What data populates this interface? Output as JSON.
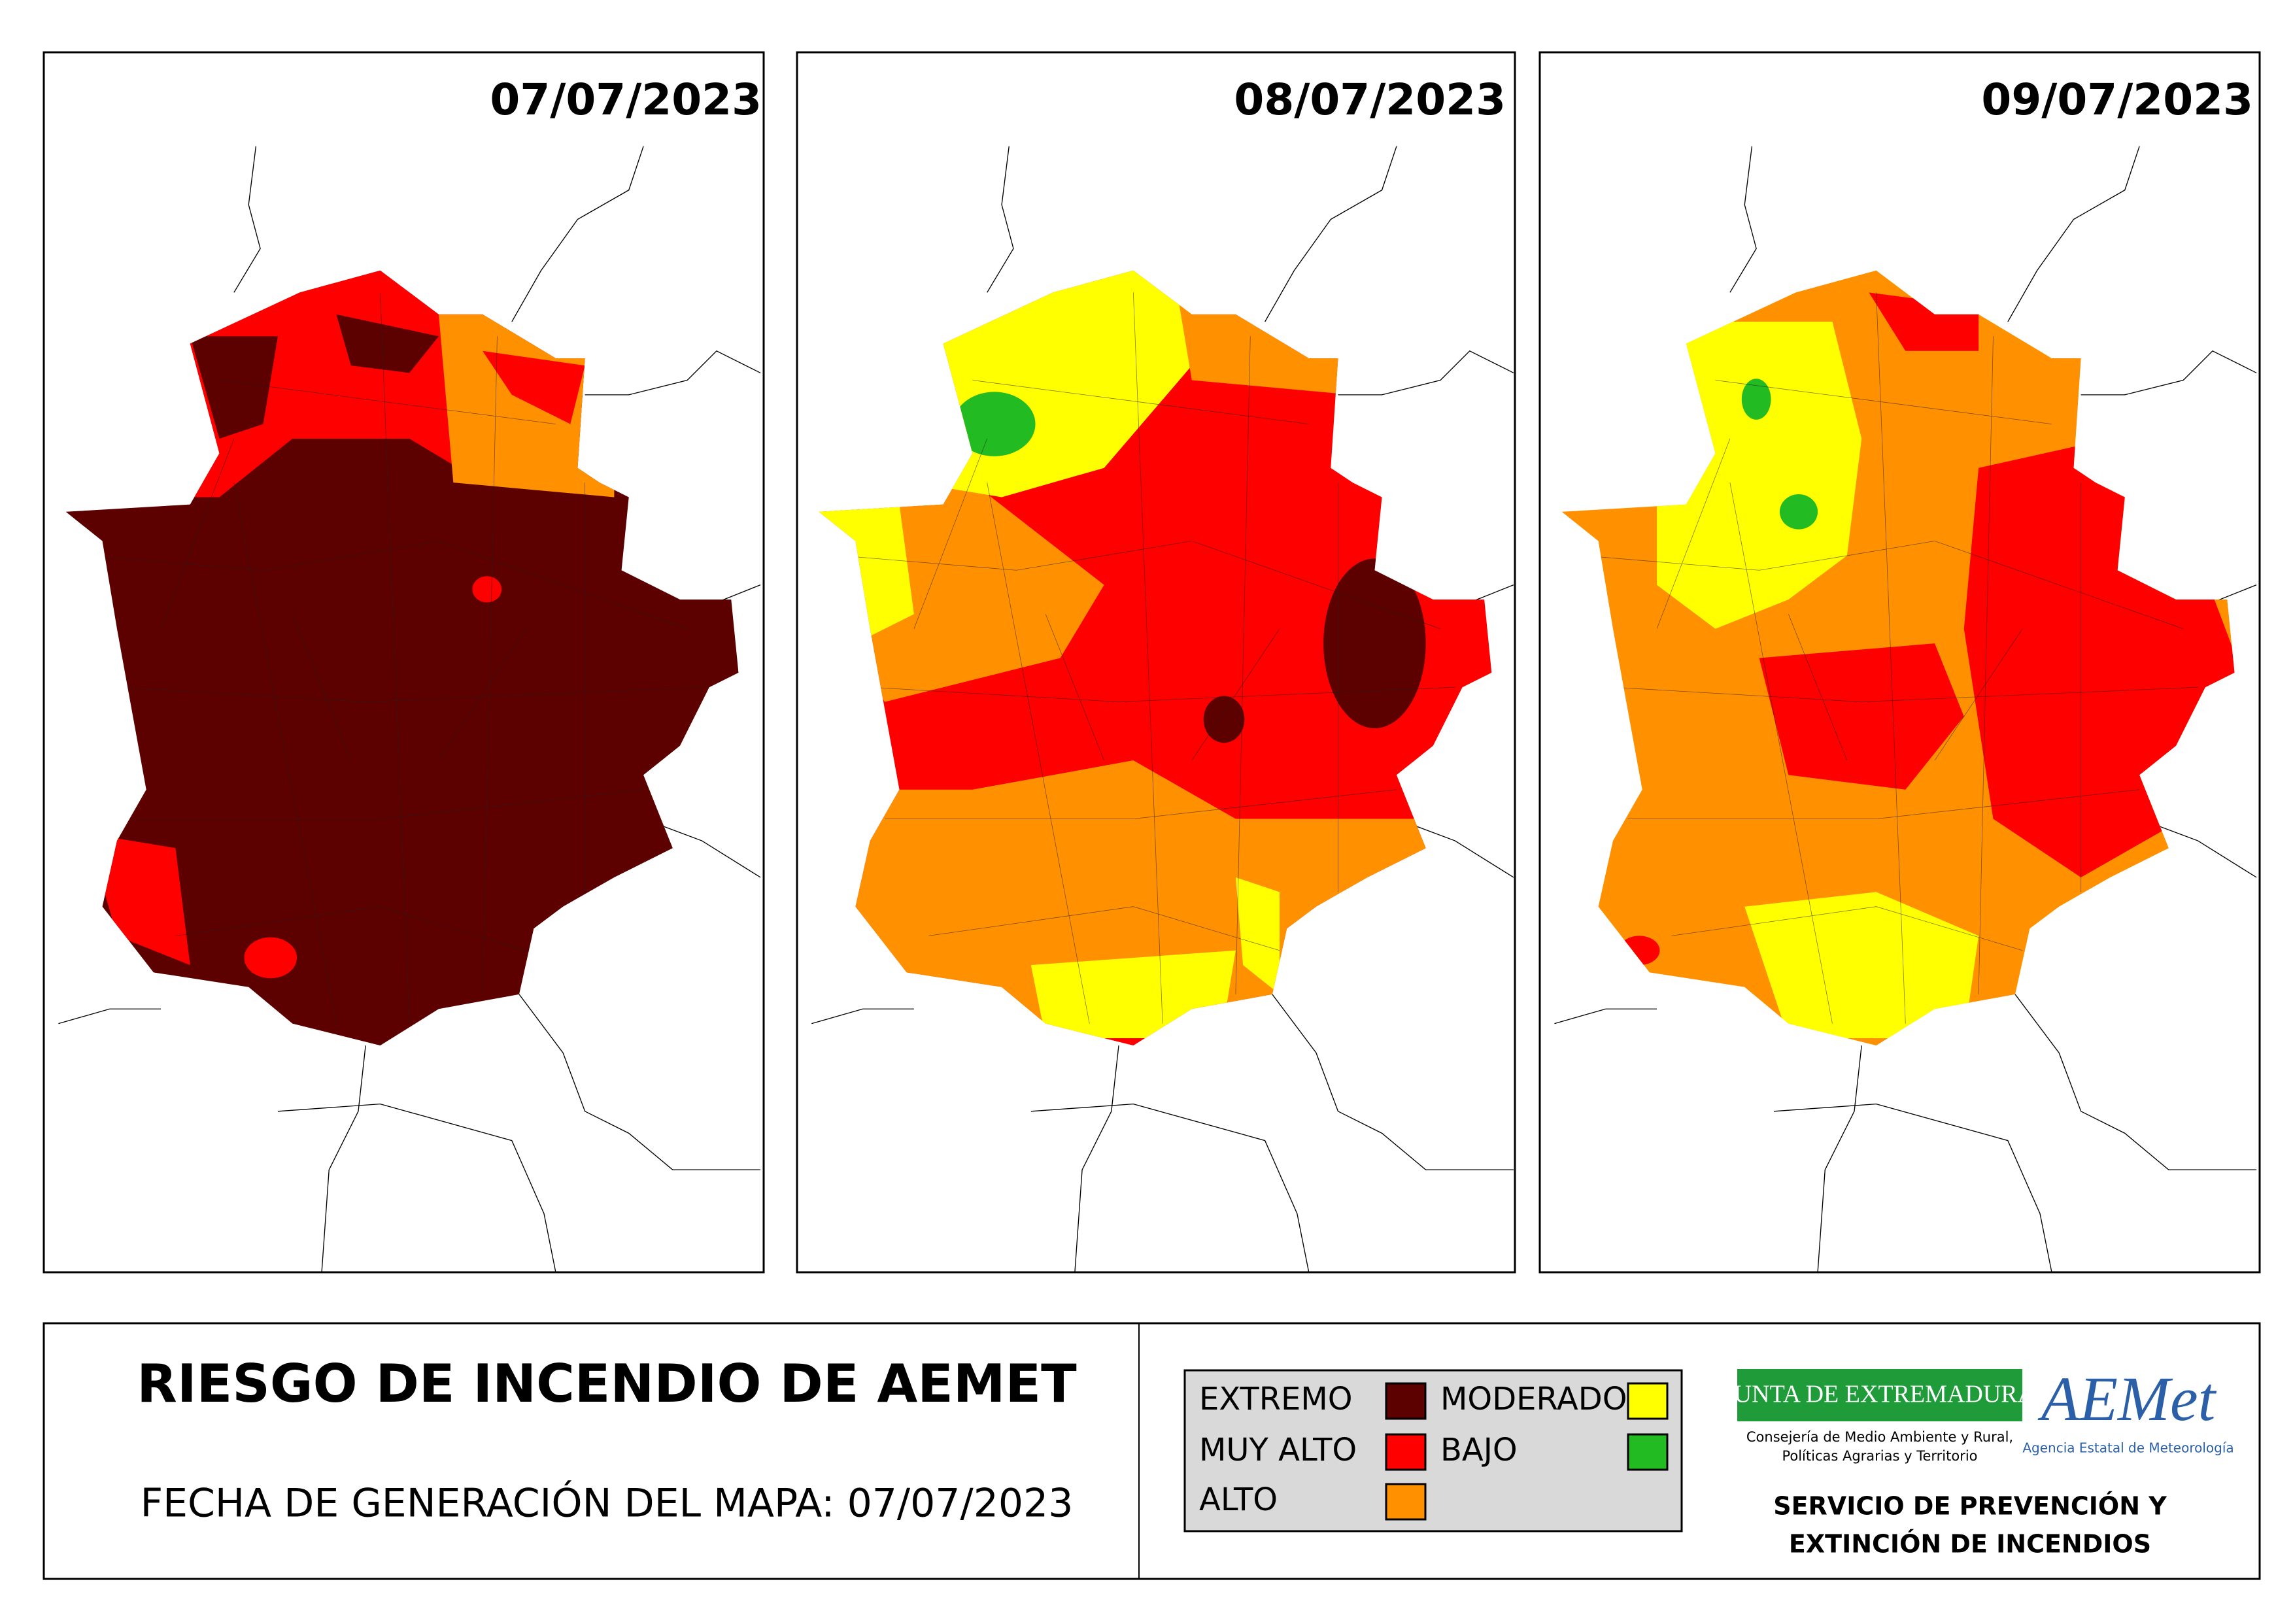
{
  "maps": [
    {
      "date": "07/07/2023"
    },
    {
      "date": "08/07/2023"
    },
    {
      "date": "09/07/2023"
    }
  ],
  "footer": {
    "title": "RIESGO DE INCENDIO DE AEMET",
    "subtitle": "FECHA DE GENERACIÓN DEL MAPA: 07/07/2023"
  },
  "legend": [
    {
      "label": "EXTREMO",
      "color": "#5c0000"
    },
    {
      "label": "MUY ALTO",
      "color": "#ff0000"
    },
    {
      "label": "ALTO",
      "color": "#ff9000"
    },
    {
      "label": "MODERADO",
      "color": "#ffff00"
    },
    {
      "label": "BAJO",
      "color": "#22bb22"
    }
  ],
  "logos": {
    "junta": "JUNTA DE EXTREMADURA",
    "junta_sub": [
      "Consejería de Medio Ambiente y Rural,",
      "Políticas Agrarias y Territorio"
    ],
    "aemet": "AEMet",
    "aemet_sub": "Agencia Estatal de Meteorología",
    "service": [
      "SERVICIO DE PREVENCIÓN Y",
      "EXTINCIÓN DE INCENDIOS"
    ]
  }
}
